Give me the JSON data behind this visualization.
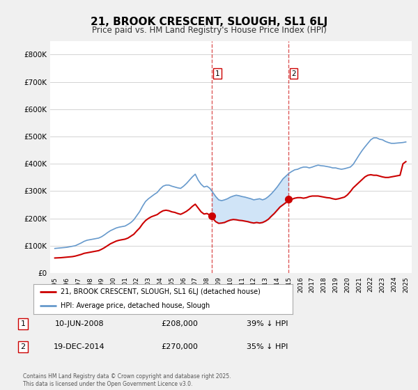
{
  "title": "21, BROOK CRESCENT, SLOUGH, SL1 6LJ",
  "subtitle": "Price paid vs. HM Land Registry's House Price Index (HPI)",
  "ylim": [
    0,
    850000
  ],
  "yticks": [
    0,
    100000,
    200000,
    300000,
    400000,
    500000,
    600000,
    700000,
    800000
  ],
  "ytick_labels": [
    "£0",
    "£100K",
    "£200K",
    "£300K",
    "£400K",
    "£500K",
    "£600K",
    "£700K",
    "£800K"
  ],
  "sale1_date_num": 2008.44,
  "sale1_price": 208000,
  "sale1_display": "10-JUN-2008",
  "sale1_amount": "£208,000",
  "sale1_hpi": "39% ↓ HPI",
  "sale2_date_num": 2014.96,
  "sale2_price": 270000,
  "sale2_display": "19-DEC-2014",
  "sale2_amount": "£270,000",
  "sale2_hpi": "35% ↓ HPI",
  "red_line_color": "#cc0000",
  "blue_line_color": "#6699cc",
  "shade_color": "#d0e4f7",
  "vline_color": "#cc0000",
  "background_color": "#f0f0f0",
  "plot_bg_color": "#ffffff",
  "grid_color": "#cccccc",
  "legend_line1": "21, BROOK CRESCENT, SLOUGH, SL1 6LJ (detached house)",
  "legend_line2": "HPI: Average price, detached house, Slough",
  "footer": "Contains HM Land Registry data © Crown copyright and database right 2025.\nThis data is licensed under the Open Government Licence v3.0.",
  "hpi_years": [
    1995.0,
    1995.25,
    1995.5,
    1995.75,
    1996.0,
    1996.25,
    1996.5,
    1996.75,
    1997.0,
    1997.25,
    1997.5,
    1997.75,
    1998.0,
    1998.25,
    1998.5,
    1998.75,
    1999.0,
    1999.25,
    1999.5,
    1999.75,
    2000.0,
    2000.25,
    2000.5,
    2000.75,
    2001.0,
    2001.25,
    2001.5,
    2001.75,
    2002.0,
    2002.25,
    2002.5,
    2002.75,
    2003.0,
    2003.25,
    2003.5,
    2003.75,
    2004.0,
    2004.25,
    2004.5,
    2004.75,
    2005.0,
    2005.25,
    2005.5,
    2005.75,
    2006.0,
    2006.25,
    2006.5,
    2006.75,
    2007.0,
    2007.25,
    2007.5,
    2007.75,
    2008.0,
    2008.25,
    2008.5,
    2008.75,
    2009.0,
    2009.25,
    2009.5,
    2009.75,
    2010.0,
    2010.25,
    2010.5,
    2010.75,
    2011.0,
    2011.25,
    2011.5,
    2011.75,
    2012.0,
    2012.25,
    2012.5,
    2012.75,
    2013.0,
    2013.25,
    2013.5,
    2013.75,
    2014.0,
    2014.25,
    2014.5,
    2014.75,
    2015.0,
    2015.25,
    2015.5,
    2015.75,
    2016.0,
    2016.25,
    2016.5,
    2016.75,
    2017.0,
    2017.25,
    2017.5,
    2017.75,
    2018.0,
    2018.25,
    2018.5,
    2018.75,
    2019.0,
    2019.25,
    2019.5,
    2019.75,
    2020.0,
    2020.25,
    2020.5,
    2020.75,
    2021.0,
    2021.25,
    2021.5,
    2021.75,
    2022.0,
    2022.25,
    2022.5,
    2022.75,
    2023.0,
    2023.25,
    2023.5,
    2023.75,
    2024.0,
    2024.25,
    2024.5,
    2024.75,
    2025.0
  ],
  "hpi_vals": [
    90000,
    91000,
    92000,
    93000,
    94000,
    96000,
    98000,
    100000,
    105000,
    110000,
    116000,
    120000,
    122000,
    124000,
    126000,
    128000,
    133000,
    140000,
    148000,
    155000,
    160000,
    165000,
    168000,
    170000,
    172000,
    178000,
    185000,
    195000,
    210000,
    225000,
    245000,
    262000,
    272000,
    280000,
    288000,
    295000,
    308000,
    318000,
    322000,
    322000,
    318000,
    315000,
    312000,
    310000,
    318000,
    328000,
    340000,
    352000,
    362000,
    340000,
    325000,
    315000,
    318000,
    310000,
    295000,
    280000,
    268000,
    265000,
    268000,
    272000,
    278000,
    282000,
    285000,
    283000,
    280000,
    278000,
    275000,
    272000,
    268000,
    270000,
    272000,
    268000,
    272000,
    280000,
    290000,
    302000,
    315000,
    330000,
    345000,
    355000,
    365000,
    372000,
    378000,
    380000,
    385000,
    388000,
    388000,
    385000,
    388000,
    392000,
    395000,
    393000,
    392000,
    390000,
    388000,
    385000,
    385000,
    382000,
    380000,
    382000,
    385000,
    388000,
    398000,
    415000,
    432000,
    448000,
    462000,
    475000,
    488000,
    495000,
    495000,
    490000,
    488000,
    482000,
    478000,
    475000,
    475000,
    476000,
    477000,
    478000,
    480000
  ],
  "red_years": [
    1995.0,
    1995.25,
    1995.5,
    1995.75,
    1996.0,
    1996.25,
    1996.5,
    1996.75,
    1997.0,
    1997.25,
    1997.5,
    1997.75,
    1998.0,
    1998.25,
    1998.5,
    1998.75,
    1999.0,
    1999.25,
    1999.5,
    1999.75,
    2000.0,
    2000.25,
    2000.5,
    2000.75,
    2001.0,
    2001.25,
    2001.5,
    2001.75,
    2002.0,
    2002.25,
    2002.5,
    2002.75,
    2003.0,
    2003.25,
    2003.5,
    2003.75,
    2004.0,
    2004.25,
    2004.5,
    2004.75,
    2005.0,
    2005.25,
    2005.5,
    2005.75,
    2006.0,
    2006.25,
    2006.5,
    2006.75,
    2007.0,
    2007.25,
    2007.5,
    2007.75,
    2008.0,
    2008.25,
    2008.44,
    2008.5,
    2008.75,
    2009.0,
    2009.25,
    2009.5,
    2009.75,
    2010.0,
    2010.25,
    2010.5,
    2010.75,
    2011.0,
    2011.25,
    2011.5,
    2011.75,
    2012.0,
    2012.25,
    2012.5,
    2012.75,
    2013.0,
    2013.25,
    2013.5,
    2013.75,
    2014.0,
    2014.25,
    2014.5,
    2014.75,
    2014.96,
    2015.0,
    2015.25,
    2015.5,
    2015.75,
    2016.0,
    2016.25,
    2016.5,
    2016.75,
    2017.0,
    2017.25,
    2017.5,
    2017.75,
    2018.0,
    2018.25,
    2018.5,
    2018.75,
    2019.0,
    2019.25,
    2019.5,
    2019.75,
    2020.0,
    2020.25,
    2020.5,
    2020.75,
    2021.0,
    2021.25,
    2021.5,
    2021.75,
    2022.0,
    2022.25,
    2022.5,
    2022.75,
    2023.0,
    2023.25,
    2023.5,
    2023.75,
    2024.0,
    2024.25,
    2024.5,
    2024.75,
    2025.0
  ],
  "red_vals": [
    55000,
    55500,
    56000,
    57000,
    58000,
    59000,
    60000,
    62000,
    65000,
    68000,
    72000,
    74000,
    76000,
    78000,
    80000,
    82000,
    87000,
    93000,
    100000,
    107000,
    112000,
    117000,
    120000,
    122000,
    124000,
    128000,
    135000,
    142000,
    154000,
    165000,
    180000,
    192000,
    200000,
    206000,
    210000,
    214000,
    222000,
    228000,
    230000,
    228000,
    224000,
    222000,
    218000,
    215000,
    220000,
    226000,
    234000,
    244000,
    252000,
    238000,
    224000,
    216000,
    218000,
    212000,
    208000,
    200000,
    188000,
    182000,
    183000,
    185000,
    190000,
    194000,
    196000,
    195000,
    193000,
    192000,
    190000,
    188000,
    185000,
    183000,
    185000,
    183000,
    185000,
    190000,
    197000,
    208000,
    218000,
    230000,
    242000,
    250000,
    258000,
    264000,
    268000,
    270000,
    274000,
    276000,
    276000,
    274000,
    276000,
    280000,
    282000,
    282000,
    282000,
    280000,
    278000,
    276000,
    275000,
    272000,
    270000,
    272000,
    275000,
    278000,
    286000,
    298000,
    312000,
    322000,
    332000,
    342000,
    352000,
    358000,
    360000,
    358000,
    358000,
    355000,
    352000,
    350000,
    350000,
    352000,
    354000,
    356000,
    358000,
    400000,
    408000
  ]
}
